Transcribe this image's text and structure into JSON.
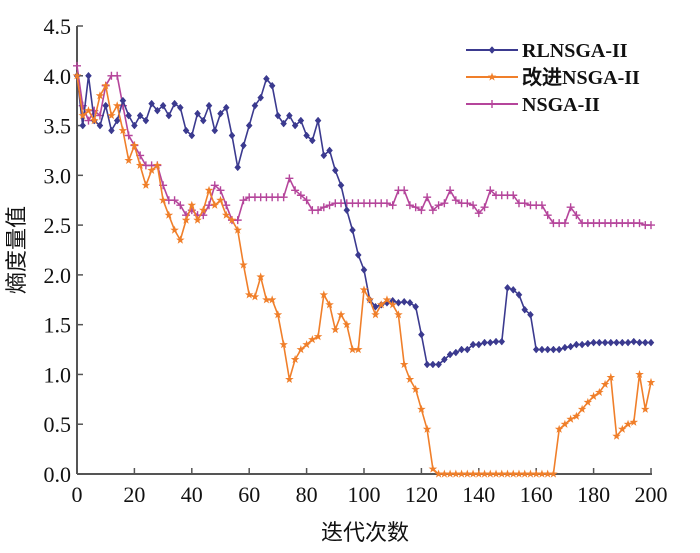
{
  "chart_data": {
    "type": "line",
    "title": "",
    "xlabel": "迭代次数",
    "ylabel": "熵度量值",
    "xlim": [
      0,
      200
    ],
    "ylim": [
      0,
      4.5
    ],
    "xticks": [
      0,
      20,
      40,
      60,
      80,
      100,
      120,
      140,
      160,
      180,
      200
    ],
    "xtick_labels": [
      "0",
      "20",
      "40",
      "60",
      "80",
      "100",
      "120",
      "140",
      "160",
      "180",
      "200"
    ],
    "yticks": [
      0,
      0.5,
      1,
      1.5,
      2,
      2.5,
      3,
      3.5,
      4,
      4.5
    ],
    "ytick_labels": [
      "0.0",
      "0.5",
      "1.0",
      "1.5",
      "2.0",
      "2.5",
      "3.0",
      "3.5",
      "4.0",
      "4.5"
    ],
    "grid": false,
    "legend_position": "top-right",
    "series": [
      {
        "name": "RLNSGA-II",
        "color": "#3b3a8f",
        "marker": "diamond",
        "x": [
          0,
          2,
          4,
          6,
          8,
          10,
          12,
          14,
          16,
          18,
          20,
          22,
          24,
          26,
          28,
          30,
          32,
          34,
          36,
          38,
          40,
          42,
          44,
          46,
          48,
          50,
          52,
          54,
          56,
          58,
          60,
          62,
          64,
          66,
          68,
          70,
          72,
          74,
          76,
          78,
          80,
          82,
          84,
          86,
          88,
          90,
          92,
          94,
          96,
          98,
          100,
          102,
          104,
          106,
          108,
          110,
          112,
          114,
          116,
          118,
          120,
          122,
          124,
          126,
          128,
          130,
          132,
          134,
          136,
          138,
          140,
          142,
          144,
          146,
          148,
          150,
          152,
          154,
          156,
          158,
          160,
          162,
          164,
          166,
          168,
          170,
          172,
          174,
          176,
          178,
          180,
          182,
          184,
          186,
          188,
          190,
          192,
          194,
          196,
          198,
          200
        ],
        "y": [
          4.0,
          3.5,
          4.0,
          3.55,
          3.5,
          3.7,
          3.45,
          3.55,
          3.75,
          3.6,
          3.5,
          3.6,
          3.55,
          3.72,
          3.65,
          3.7,
          3.6,
          3.72,
          3.68,
          3.45,
          3.4,
          3.62,
          3.55,
          3.7,
          3.45,
          3.62,
          3.68,
          3.4,
          3.08,
          3.3,
          3.5,
          3.7,
          3.78,
          3.97,
          3.9,
          3.6,
          3.52,
          3.6,
          3.5,
          3.55,
          3.4,
          3.35,
          3.55,
          3.2,
          3.25,
          3.05,
          2.9,
          2.65,
          2.45,
          2.2,
          2.05,
          1.75,
          1.68,
          1.7,
          1.72,
          1.74,
          1.72,
          1.73,
          1.72,
          1.68,
          1.4,
          1.1,
          1.1,
          1.1,
          1.15,
          1.2,
          1.22,
          1.25,
          1.25,
          1.3,
          1.3,
          1.32,
          1.32,
          1.33,
          1.33,
          1.87,
          1.85,
          1.8,
          1.65,
          1.6,
          1.25,
          1.25,
          1.25,
          1.25,
          1.25,
          1.27,
          1.28,
          1.3,
          1.3,
          1.31,
          1.32,
          1.32,
          1.32,
          1.32,
          1.32,
          1.32,
          1.32,
          1.33,
          1.32,
          1.32,
          1.32
        ]
      },
      {
        "name": "改进NSGA-II",
        "color": "#f07f2a",
        "marker": "star",
        "x": [
          0,
          2,
          4,
          6,
          8,
          10,
          12,
          14,
          16,
          18,
          20,
          22,
          24,
          26,
          28,
          30,
          32,
          34,
          36,
          38,
          40,
          42,
          44,
          46,
          48,
          50,
          52,
          54,
          56,
          58,
          60,
          62,
          64,
          66,
          68,
          70,
          72,
          74,
          76,
          78,
          80,
          82,
          84,
          86,
          88,
          90,
          92,
          94,
          96,
          98,
          100,
          102,
          104,
          106,
          108,
          110,
          112,
          114,
          116,
          118,
          120,
          122,
          124,
          126,
          128,
          130,
          132,
          134,
          136,
          138,
          140,
          142,
          144,
          146,
          148,
          150,
          152,
          154,
          156,
          158,
          160,
          162,
          164,
          166,
          168,
          170,
          172,
          174,
          176,
          178,
          180,
          182,
          184,
          186,
          188,
          190,
          192,
          194,
          196,
          198,
          200
        ],
        "y": [
          4.0,
          3.6,
          3.65,
          3.55,
          3.8,
          3.9,
          3.6,
          3.7,
          3.45,
          3.15,
          3.3,
          3.1,
          2.9,
          3.05,
          3.1,
          2.75,
          2.6,
          2.45,
          2.35,
          2.55,
          2.7,
          2.55,
          2.65,
          2.85,
          2.7,
          2.75,
          2.6,
          2.55,
          2.45,
          2.1,
          1.8,
          1.78,
          1.98,
          1.75,
          1.75,
          1.6,
          1.3,
          0.95,
          1.15,
          1.25,
          1.3,
          1.35,
          1.38,
          1.8,
          1.7,
          1.45,
          1.6,
          1.5,
          1.25,
          1.25,
          1.85,
          1.75,
          1.6,
          1.7,
          1.75,
          1.7,
          1.6,
          1.1,
          0.95,
          0.85,
          0.65,
          0.45,
          0.05,
          0.0,
          0.0,
          0.0,
          0.0,
          0.0,
          0.0,
          0.0,
          0.0,
          0.0,
          0.0,
          0.0,
          0.0,
          0.0,
          0.0,
          0.0,
          0.0,
          0.0,
          0.0,
          0.0,
          0.0,
          0.0,
          0.45,
          0.5,
          0.55,
          0.58,
          0.65,
          0.72,
          0.78,
          0.82,
          0.9,
          0.97,
          0.38,
          0.45,
          0.5,
          0.52,
          1.0,
          0.65,
          0.92
        ]
      },
      {
        "name": "NSGA-II",
        "color": "#b5459b",
        "marker": "plus",
        "x": [
          0,
          2,
          4,
          6,
          8,
          10,
          12,
          14,
          16,
          18,
          20,
          22,
          24,
          26,
          28,
          30,
          32,
          34,
          36,
          38,
          40,
          42,
          44,
          46,
          48,
          50,
          52,
          54,
          56,
          58,
          60,
          62,
          64,
          66,
          68,
          70,
          72,
          74,
          76,
          78,
          80,
          82,
          84,
          86,
          88,
          90,
          92,
          94,
          96,
          98,
          100,
          102,
          104,
          106,
          108,
          110,
          112,
          114,
          116,
          118,
          120,
          122,
          124,
          126,
          128,
          130,
          132,
          134,
          136,
          138,
          140,
          142,
          144,
          146,
          148,
          150,
          152,
          154,
          156,
          158,
          160,
          162,
          164,
          166,
          168,
          170,
          172,
          174,
          176,
          178,
          180,
          182,
          184,
          186,
          188,
          190,
          192,
          194,
          196,
          198,
          200
        ],
        "y": [
          4.1,
          3.7,
          3.55,
          3.65,
          3.6,
          3.9,
          4.0,
          4.0,
          3.7,
          3.4,
          3.3,
          3.2,
          3.1,
          3.1,
          3.1,
          2.9,
          2.75,
          2.75,
          2.7,
          2.6,
          2.65,
          2.6,
          2.6,
          2.7,
          2.9,
          2.85,
          2.7,
          2.55,
          2.55,
          2.75,
          2.78,
          2.78,
          2.78,
          2.78,
          2.78,
          2.78,
          2.78,
          2.97,
          2.85,
          2.8,
          2.75,
          2.65,
          2.65,
          2.68,
          2.7,
          2.72,
          2.72,
          2.72,
          2.72,
          2.72,
          2.72,
          2.72,
          2.72,
          2.72,
          2.72,
          2.7,
          2.85,
          2.85,
          2.7,
          2.68,
          2.65,
          2.78,
          2.65,
          2.7,
          2.72,
          2.85,
          2.75,
          2.72,
          2.72,
          2.7,
          2.62,
          2.68,
          2.85,
          2.8,
          2.8,
          2.8,
          2.8,
          2.72,
          2.72,
          2.7,
          2.7,
          2.7,
          2.6,
          2.52,
          2.52,
          2.52,
          2.68,
          2.6,
          2.52,
          2.52,
          2.52,
          2.52,
          2.52,
          2.52,
          2.52,
          2.52,
          2.52,
          2.52,
          2.52,
          2.5,
          2.5
        ]
      }
    ]
  }
}
